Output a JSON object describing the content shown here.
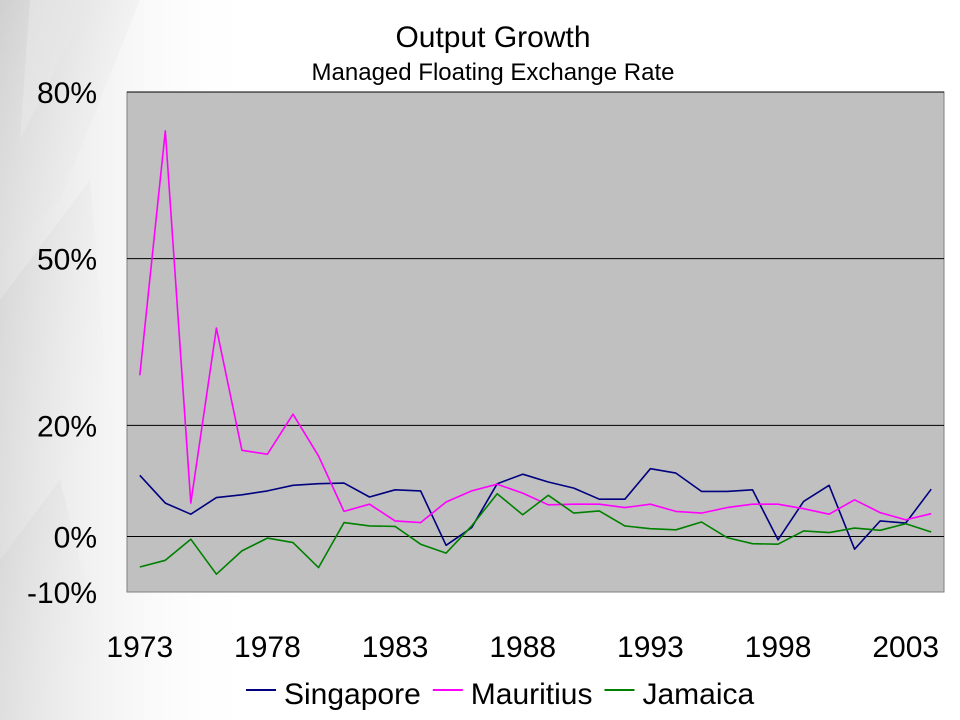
{
  "chart_data": {
    "type": "line",
    "title": "Output Growth",
    "subtitle": "Managed Floating Exchange Rate",
    "xlabel": "",
    "ylabel": "",
    "x": [
      1973,
      1974,
      1975,
      1976,
      1977,
      1978,
      1979,
      1980,
      1981,
      1982,
      1983,
      1984,
      1985,
      1986,
      1987,
      1988,
      1989,
      1990,
      1991,
      1992,
      1993,
      1994,
      1995,
      1996,
      1997,
      1998,
      1999,
      2000,
      2001,
      2002,
      2003,
      2004
    ],
    "xlim": [
      1972.5,
      2004.5
    ],
    "ylim": [
      -10,
      80
    ],
    "yticks": [
      80,
      50,
      20,
      0,
      -10
    ],
    "ytick_labels": [
      "80%",
      "50%",
      "20%",
      "0%",
      "-10%"
    ],
    "xticks": [
      1973,
      1978,
      1983,
      1988,
      1993,
      1998,
      2003
    ],
    "xtick_labels": [
      "1973",
      "1978",
      "1983",
      "1988",
      "1993",
      "1998",
      "2003"
    ],
    "gridlines": [
      80,
      50,
      20,
      0
    ],
    "legend_position": "bottom",
    "plot_background": "#c0c0c0",
    "series": [
      {
        "name": "Singapore",
        "color": "#000080",
        "values": [
          11,
          6,
          4,
          7,
          7.5,
          8.2,
          9.2,
          9.5,
          9.6,
          7.1,
          8.4,
          8.2,
          -1.6,
          1.6,
          9.5,
          11.2,
          9.8,
          8.7,
          6.7,
          6.7,
          12.2,
          11.4,
          8.1,
          8.1,
          8.4,
          -0.6,
          6.3,
          9.2,
          -2.3,
          2.8,
          2.4,
          8.5
        ]
      },
      {
        "name": "Mauritius",
        "color": "#ff00ff",
        "values": [
          29,
          73,
          6,
          37.5,
          15.5,
          14.8,
          22,
          14.5,
          4.5,
          5.8,
          2.8,
          2.5,
          6.2,
          8.2,
          9.4,
          7.8,
          5.7,
          5.8,
          5.8,
          5.2,
          5.8,
          4.5,
          4.2,
          5.2,
          5.8,
          5.8,
          5,
          4.0,
          6.6,
          4.3,
          3.0,
          4.1
        ]
      },
      {
        "name": "Jamaica",
        "color": "#008000",
        "values": [
          -5.5,
          -4.3,
          -0.5,
          -6.8,
          -2.6,
          -0.3,
          -1.1,
          -5.6,
          2.5,
          1.9,
          1.8,
          -1.4,
          -3,
          1.9,
          7.7,
          3.9,
          7.4,
          4.2,
          4.6,
          1.9,
          1.4,
          1.2,
          2.6,
          -0.2,
          -1.3,
          -1.4,
          1,
          0.7,
          1.5,
          1.1,
          2.3,
          0.8
        ]
      }
    ]
  }
}
